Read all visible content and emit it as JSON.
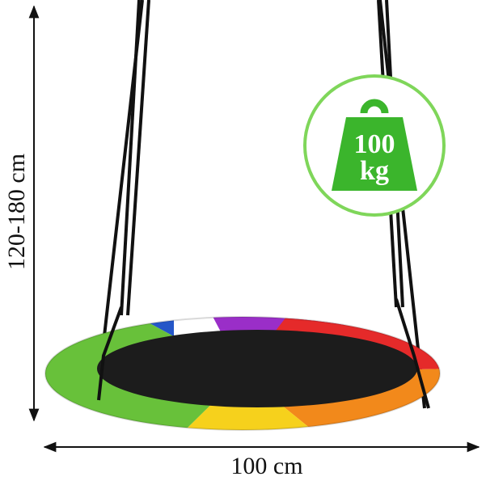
{
  "dimensions": {
    "height": "120-180 cm",
    "width": "100 cm"
  },
  "badge": {
    "weight": "100",
    "unit": "kg"
  }
}
